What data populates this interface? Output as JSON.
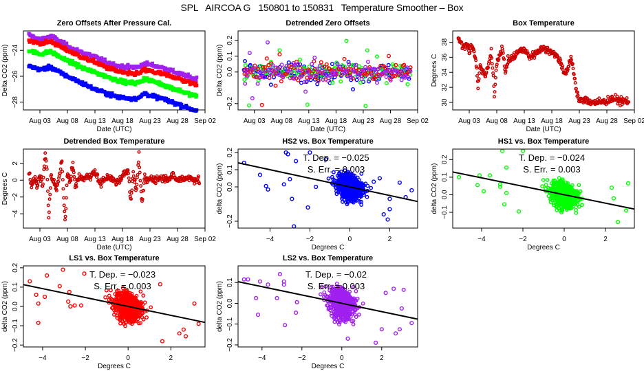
{
  "figure": {
    "title": "SPL   AIRCOA G   150801 to 150831   Temperature Smoother – Box"
  },
  "chart_data": [
    {
      "id": "zero-offsets",
      "type": "scatter",
      "title": "Zero Offsets After Pressure Cal.",
      "xlabel": "Date (UTC)",
      "ylabel": "Delta CO2 (ppm)",
      "xticks": [
        "Aug 03",
        "Aug 08",
        "Aug 13",
        "Aug 18",
        "Aug 23",
        "Aug 28",
        "Sep 02"
      ],
      "xlim_days": [
        -1,
        32
      ],
      "yticks": [
        -24,
        -26,
        -28
      ],
      "ylim": [
        -28.6,
        -22.5
      ],
      "series": [
        {
          "name": "LS2",
          "color": "#a020f0",
          "x": [
            0,
            2,
            4,
            6,
            8,
            10,
            12,
            14,
            16,
            18,
            20,
            21,
            22,
            24,
            26,
            28,
            30
          ],
          "y": [
            -22.8,
            -23.2,
            -22.9,
            -23.4,
            -23.9,
            -24.2,
            -24.5,
            -24.9,
            -25.2,
            -25.3,
            -25.3,
            -25.0,
            -25.1,
            -25.3,
            -25.6,
            -25.9,
            -26.2
          ]
        },
        {
          "name": "LS1",
          "color": "#ff0000",
          "x": [
            0,
            2,
            4,
            6,
            8,
            10,
            12,
            14,
            16,
            18,
            20,
            21,
            22,
            24,
            26,
            28,
            30
          ],
          "y": [
            -23.2,
            -23.5,
            -23.3,
            -23.8,
            -24.2,
            -24.6,
            -24.9,
            -25.3,
            -25.6,
            -25.8,
            -25.8,
            -25.5,
            -25.6,
            -25.8,
            -26.0,
            -26.3,
            -26.6
          ]
        },
        {
          "name": "HS1",
          "color": "#00ff00",
          "x": [
            0,
            2,
            4,
            6,
            8,
            10,
            12,
            14,
            16,
            18,
            20,
            21,
            22,
            24,
            26,
            28,
            30
          ],
          "y": [
            -24.0,
            -24.3,
            -24.1,
            -24.6,
            -25.0,
            -25.4,
            -25.7,
            -26.0,
            -26.3,
            -26.5,
            -26.5,
            -26.2,
            -26.3,
            -26.6,
            -26.9,
            -27.2,
            -27.5
          ]
        },
        {
          "name": "HS2",
          "color": "#0000ff",
          "x": [
            0,
            2,
            4,
            6,
            8,
            10,
            12,
            14,
            16,
            18,
            20,
            21,
            22,
            24,
            26,
            28,
            30
          ],
          "y": [
            -25.2,
            -25.5,
            -25.3,
            -25.8,
            -26.2,
            -26.6,
            -27.0,
            -27.3,
            -27.6,
            -27.7,
            -27.7,
            -27.3,
            -27.5,
            -27.7,
            -28.0,
            -28.3,
            -28.6
          ]
        }
      ]
    },
    {
      "id": "detrended-zero-offsets",
      "type": "scatter",
      "title": "Detrended Zero Offsets",
      "xlabel": "Date (UTC)",
      "ylabel": "Delta CO2 (ppm)",
      "xticks": [
        "Aug 03",
        "Aug 08",
        "Aug 13",
        "Aug 18",
        "Aug 23",
        "Aug 28",
        "Sep 02"
      ],
      "xlim_days": [
        -1,
        32
      ],
      "yticks": [
        0.2,
        0.1,
        0.0,
        -0.2
      ],
      "ylim": [
        -0.24,
        0.26
      ],
      "series_colors": [
        "#0000ff",
        "#00ff00",
        "#ff0000",
        "#a020f0"
      ],
      "spread_ppm": 0.08,
      "outlier_range_ppm": [
        -0.22,
        0.25
      ]
    },
    {
      "id": "box-temperature",
      "type": "scatter",
      "title": "Box Temperature",
      "xlabel": "Date (UTC)",
      "ylabel": "Degrees C",
      "xticks": [
        "Aug 03",
        "Aug 08",
        "Aug 13",
        "Aug 18",
        "Aug 23",
        "Aug 28",
        "Sep 02"
      ],
      "xlim_days": [
        -1,
        32
      ],
      "yticks": [
        38,
        36,
        34,
        32,
        30
      ],
      "ylim": [
        29,
        39.5
      ],
      "color": "#8b0000",
      "x": [
        0,
        0.5,
        1,
        1.5,
        2,
        2.5,
        3,
        3.3,
        3.6,
        4,
        4.5,
        5,
        5.5,
        6,
        6.3,
        6.6,
        7,
        7.5,
        8,
        8.5,
        9,
        10,
        11,
        12,
        13,
        14,
        15,
        16,
        17,
        18,
        18.5,
        19,
        19.5,
        20,
        20.5,
        21,
        21.5,
        22,
        23,
        24,
        25,
        26,
        27,
        28,
        29,
        30,
        31
      ],
      "y": [
        38.8,
        37.8,
        37.2,
        38.0,
        36.8,
        37.5,
        36.2,
        35.0,
        32.0,
        34.8,
        34.2,
        33.5,
        35.0,
        36.5,
        34.0,
        31.0,
        35.5,
        36.2,
        37.5,
        34.0,
        35.5,
        36.0,
        36.8,
        37.0,
        36.0,
        36.5,
        37.2,
        37.0,
        36.8,
        36.0,
        35.5,
        34.5,
        33.8,
        34.5,
        36.0,
        34.0,
        31.5,
        30.2,
        30.3,
        30.1,
        30.0,
        30.0,
        30.2,
        30.5,
        30.3,
        30.1,
        30.2
      ]
    },
    {
      "id": "detrended-box-temperature",
      "type": "scatter",
      "title": "Detrended Box Temperature",
      "xlabel": "Date (UTC)",
      "ylabel": "Degrees C",
      "xticks": [
        "Aug 03",
        "Aug 08",
        "Aug 13",
        "Aug 18",
        "Aug 23",
        "Aug 28",
        "Sep 02"
      ],
      "xlim_days": [
        -1,
        32
      ],
      "yticks": [
        2,
        0,
        -2,
        -4
      ],
      "ylim": [
        -5.7,
        3.7
      ],
      "color": "#8b0000",
      "x": [
        0,
        0.5,
        1,
        1.5,
        2,
        2.5,
        3,
        3.3,
        3.6,
        4,
        4.5,
        5,
        5.5,
        6,
        6.3,
        6.6,
        7,
        7.5,
        8,
        8.5,
        9,
        10,
        11,
        12,
        13,
        14,
        15,
        16,
        17,
        18,
        18.5,
        19,
        19.5,
        20,
        20.5,
        21,
        21.5,
        22,
        23,
        24,
        25,
        26,
        27,
        28,
        29,
        30,
        31
      ],
      "y": [
        0.8,
        -0.6,
        0.3,
        -0.8,
        0.5,
        -0.7,
        3.3,
        1.0,
        -4.5,
        0.3,
        -0.2,
        -1.2,
        0.5,
        2.4,
        -2.0,
        -5.2,
        1.0,
        -0.3,
        1.8,
        -0.8,
        0.3,
        0.2,
        0.5,
        0.9,
        -0.4,
        0.3,
        0.2,
        -0.3,
        0.5,
        1.3,
        -2.3,
        0.8,
        -1.3,
        2.9,
        -3.0,
        0.3,
        -0.1,
        0.2,
        0.1,
        0.3,
        0.2,
        0.5,
        0.0,
        0.2,
        0.3,
        0.1,
        0.0
      ]
    },
    {
      "id": "hs2-vs-box",
      "type": "scatter",
      "title": "HS2 vs. Box Temperature",
      "xlabel": "Degrees C",
      "ylabel": "delta CO2 (ppm)",
      "xticks": [
        -4,
        -2,
        0,
        2
      ],
      "yticks": [
        0.2,
        0.1,
        0.0,
        -0.2
      ],
      "xlim": [
        -5.6,
        3.4
      ],
      "ylim": [
        -0.24,
        0.22
      ],
      "color": "#0000ff",
      "annotation": [
        "T. Dep. =  −0.025",
        "S. Err. = 0.003"
      ],
      "fit": {
        "slope": -0.025,
        "intercept": 0.0
      },
      "outliers": [
        [
          -5.3,
          0.14
        ],
        [
          -4.5,
          0.07
        ],
        [
          -4.2,
          0.005
        ],
        [
          -4.1,
          -0.015
        ],
        [
          -3.3,
          0.015
        ],
        [
          -3.2,
          0.2
        ],
        [
          -3.1,
          0.19
        ],
        [
          -3.0,
          0.045
        ],
        [
          -2.9,
          -0.07
        ],
        [
          -2.8,
          -0.23
        ],
        [
          -2.7,
          0.15
        ],
        [
          -2.1,
          -0.12
        ],
        [
          -2.0,
          0.2
        ],
        [
          -1.7,
          0.0
        ],
        [
          -1.2,
          0.16
        ],
        [
          1.2,
          0.03
        ],
        [
          1.5,
          0.05
        ],
        [
          2.0,
          -0.07
        ],
        [
          2.5,
          0.025
        ],
        [
          2.8,
          -0.06
        ],
        [
          3.1,
          -0.02
        ],
        [
          1.7,
          -0.16
        ],
        [
          1.9,
          -0.19
        ],
        [
          2.0,
          -0.13
        ]
      ]
    },
    {
      "id": "hs1-vs-box",
      "type": "scatter",
      "title": "HS1 vs. Box Temperature",
      "xlabel": "Degrees C",
      "ylabel": "delta CO2 (ppm)",
      "xticks": [
        -4,
        -2,
        0,
        2
      ],
      "yticks": [
        0.2,
        0.1,
        0.0,
        -0.1
      ],
      "xlim": [
        -5.4,
        3.4
      ],
      "ylim": [
        -0.19,
        0.26
      ],
      "color": "#00ff00",
      "annotation": [
        "T. Dep. =  −0.024",
        "S. Err. = 0.003"
      ],
      "fit": {
        "slope": -0.024,
        "intercept": 0.0
      },
      "outliers": [
        [
          -5.1,
          0.1
        ],
        [
          -4.1,
          0.11
        ],
        [
          -4.2,
          0.055
        ],
        [
          -3.9,
          0.02
        ],
        [
          -3.6,
          0.11
        ],
        [
          -3.1,
          0.06
        ],
        [
          -3.1,
          0.045
        ],
        [
          -3.0,
          0.25
        ],
        [
          -2.9,
          -0.055
        ],
        [
          -2.8,
          0.01
        ],
        [
          -2.8,
          0.155
        ],
        [
          -2.2,
          -0.095
        ],
        [
          -2.0,
          0.25
        ],
        [
          2.6,
          -0.155
        ],
        [
          3.1,
          0.065
        ],
        [
          2.3,
          0.04
        ],
        [
          2.4,
          -0.02
        ],
        [
          3.0,
          -0.09
        ]
      ]
    },
    {
      "id": "ls1-vs-box",
      "type": "scatter",
      "title": "LS1 vs. Box Temperature",
      "xlabel": "Degrees C",
      "ylabel": "delta CO2 (ppm)",
      "xticks": [
        -4,
        -2,
        0,
        2
      ],
      "yticks": [
        0.2,
        0.1,
        0.0,
        -0.1,
        -0.2
      ],
      "xlim": [
        -4.9,
        3.6
      ],
      "ylim": [
        -0.21,
        0.21
      ],
      "color": "#ff0000",
      "annotation": [
        "T. Dep. =  −0.023",
        "S. Err. = 0.003"
      ],
      "fit": {
        "slope": -0.023,
        "intercept": 0.0
      },
      "outliers": [
        [
          -4.6,
          0.13
        ],
        [
          -4.3,
          0.06
        ],
        [
          -4.2,
          0.015
        ],
        [
          -4.2,
          -0.085
        ],
        [
          -3.9,
          0.05
        ],
        [
          -3.8,
          0.16
        ],
        [
          -3.2,
          0.105
        ],
        [
          -3.05,
          0.19
        ],
        [
          -2.8,
          0.025
        ],
        [
          -2.75,
          0.075
        ],
        [
          -2.7,
          0.0
        ],
        [
          -2.5,
          0.005
        ],
        [
          -2.2,
          0.005
        ],
        [
          -2.05,
          0.17
        ],
        [
          3.1,
          0.015
        ],
        [
          3.3,
          -0.09
        ],
        [
          2.6,
          -0.12
        ],
        [
          2.7,
          -0.155
        ],
        [
          2.4,
          -0.14
        ],
        [
          1.5,
          0.115
        ],
        [
          1.6,
          -0.18
        ]
      ]
    },
    {
      "id": "ls2-vs-box",
      "type": "scatter",
      "title": "LS2 vs. Box Temperature",
      "xlabel": "Degrees C",
      "ylabel": "delta CO2 (ppm)",
      "xticks": [
        -4,
        -2,
        0,
        2
      ],
      "yticks": [
        0.1,
        0.0,
        -0.1,
        -0.2
      ],
      "xlim": [
        -5.2,
        3.8
      ],
      "ylim": [
        -0.21,
        0.18
      ],
      "color": "#a020f0",
      "annotation": [
        "T. Dep. =  −0.02",
        "S. Err. = 0.003"
      ],
      "fit": {
        "slope": -0.02,
        "intercept": 0.0
      },
      "outliers": [
        [
          -4.9,
          0.115
        ],
        [
          -4.7,
          0.115
        ],
        [
          -4.3,
          0.025
        ],
        [
          -4.2,
          -0.055
        ],
        [
          -4.1,
          0.105
        ],
        [
          -3.7,
          0.09
        ],
        [
          -3.25,
          0.025
        ],
        [
          -3.1,
          0.14
        ],
        [
          -2.9,
          0.105
        ],
        [
          -2.9,
          0.09
        ],
        [
          -2.85,
          -0.105
        ],
        [
          -2.3,
          -0.045
        ],
        [
          -2.25,
          0.005
        ],
        [
          3.5,
          -0.095
        ],
        [
          3.1,
          0.065
        ],
        [
          2.9,
          -0.125
        ],
        [
          3.0,
          -0.025
        ],
        [
          2.6,
          0.07
        ],
        [
          2.2,
          0.05
        ],
        [
          2.7,
          -0.145
        ],
        [
          1.7,
          -0.19
        ],
        [
          2.0,
          -0.125
        ],
        [
          0.3,
          -0.17
        ]
      ]
    }
  ]
}
